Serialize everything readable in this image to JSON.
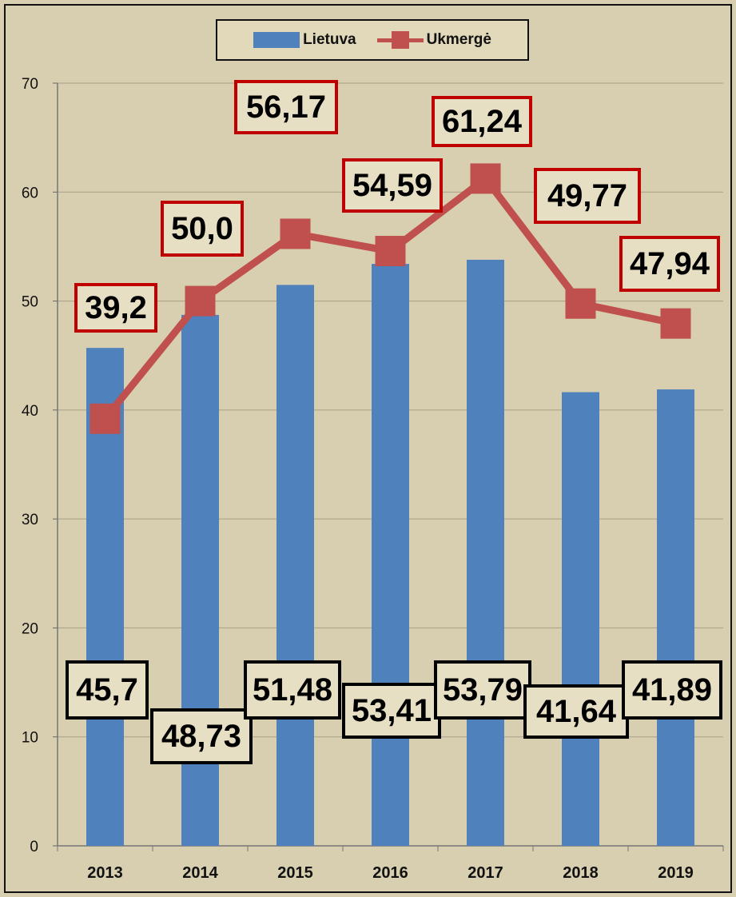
{
  "colors": {
    "background": "#d8cfb0",
    "lietuva_bar": "#4f81bd",
    "ukmerge_line": "#c0504d",
    "line_label_border": "#c00000",
    "bar_label_border": "#000000"
  },
  "legend": {
    "items": [
      {
        "name": "Lietuva",
        "icon": "blue-bar-swatch"
      },
      {
        "name": "Ukmergė",
        "icon": "red-line-square-marker-swatch"
      }
    ]
  },
  "chart_data": {
    "type": "bar",
    "categories": [
      "2013",
      "2014",
      "2015",
      "2016",
      "2017",
      "2018",
      "2019"
    ],
    "series": [
      {
        "name": "Lietuva",
        "type": "bar",
        "values": [
          45.7,
          48.73,
          51.48,
          53.41,
          53.79,
          41.64,
          41.89
        ],
        "labels": [
          "45,7",
          "48,73",
          "51,48",
          "53,41",
          "53,79",
          "41,64",
          "41,89"
        ]
      },
      {
        "name": "Ukmergė",
        "type": "line",
        "marker": "square",
        "values": [
          39.2,
          50.0,
          56.17,
          54.59,
          61.24,
          49.77,
          47.94
        ],
        "labels": [
          "39,2",
          "50,0",
          "56,17",
          "54,59",
          "61,24",
          "49,77",
          "47,94"
        ]
      }
    ],
    "title": "",
    "xlabel": "",
    "ylabel": "",
    "ylim": [
      0,
      70
    ],
    "yticks": [
      "0",
      "10",
      "20",
      "30",
      "40",
      "50",
      "60",
      "70"
    ],
    "grid": true,
    "legend_position": "top-center"
  }
}
